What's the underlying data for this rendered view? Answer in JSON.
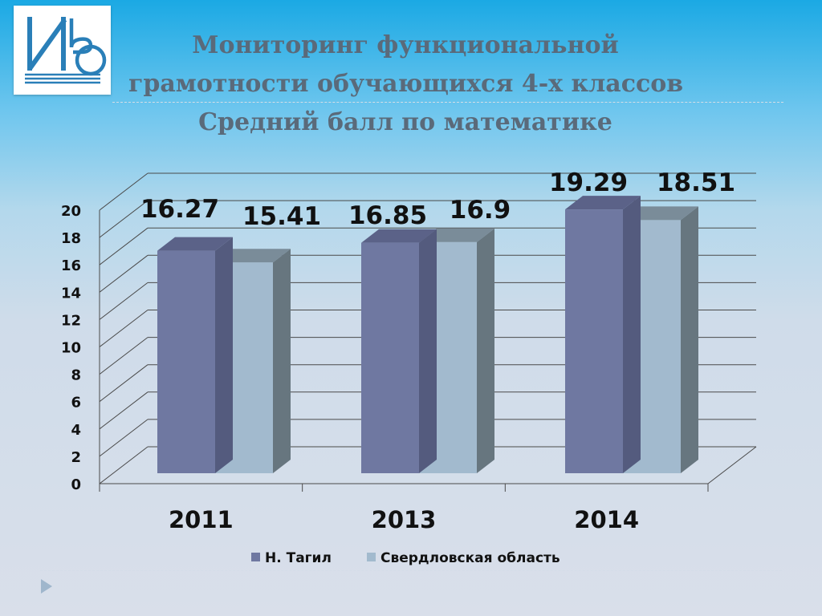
{
  "slide": {
    "title_lines": [
      "Мониторинг функциональной",
      "грамотности обучающихся 4-х классов",
      "Средний балл по математике"
    ],
    "logo": "ИВ logo"
  },
  "colors": {
    "series1_front": "#6f78a1",
    "series1_top": "#5b6288",
    "series1_side": "#545b7e",
    "series2_front": "#a2bace",
    "series2_top": "#7a8c99",
    "series2_side": "#67767f",
    "title": "#5a6a7a",
    "label": "#111111"
  },
  "chart_data": {
    "type": "bar",
    "categories": [
      "2011",
      "2013",
      "2014"
    ],
    "series": [
      {
        "name": "Н. Тагил",
        "values": [
          16.27,
          16.85,
          19.29
        ]
      },
      {
        "name": "Свердловская область",
        "values": [
          15.41,
          16.9,
          18.51
        ]
      }
    ],
    "data_labels": [
      [
        "16.27",
        "16.85",
        "19.29"
      ],
      [
        "15.41",
        "16.9",
        "18.51"
      ]
    ],
    "y_ticks": [
      "0",
      "2",
      "4",
      "6",
      "8",
      "10",
      "12",
      "14",
      "16",
      "18",
      "20"
    ],
    "ylim": [
      0,
      20
    ],
    "grid": true,
    "legend_position": "bottom",
    "style": "3d-clustered-column"
  }
}
